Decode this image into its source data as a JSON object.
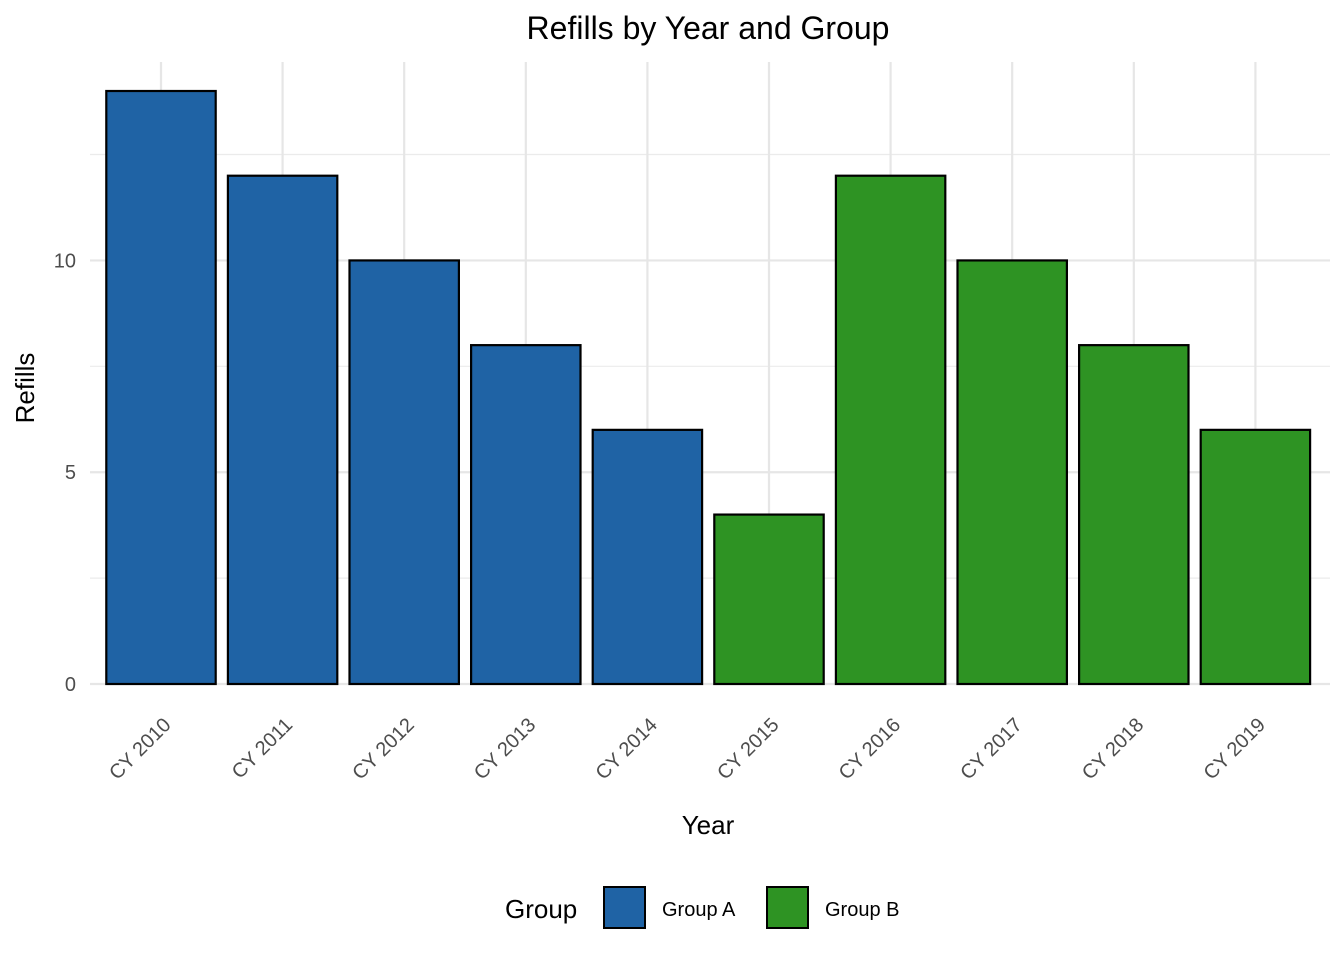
{
  "chart_data": {
    "type": "bar",
    "title": "Refills by Year and Group",
    "xlabel": "Year",
    "ylabel": "Refills",
    "categories": [
      "CY 2010",
      "CY 2011",
      "CY 2012",
      "CY 2013",
      "CY 2014",
      "CY 2015",
      "CY 2016",
      "CY 2017",
      "CY 2018",
      "CY 2019"
    ],
    "values": [
      14,
      12,
      10,
      8,
      6,
      4,
      12,
      10,
      8,
      6
    ],
    "groups": [
      "Group A",
      "Group A",
      "Group A",
      "Group A",
      "Group A",
      "Group B",
      "Group B",
      "Group B",
      "Group B",
      "Group B"
    ],
    "y_ticks": [
      0,
      5,
      10
    ],
    "ylim": [
      0,
      14.7
    ],
    "grid": true,
    "legend": {
      "title": "Group",
      "position": "bottom",
      "entries": [
        {
          "name": "Group A",
          "color": "#1f63a5"
        },
        {
          "name": "Group B",
          "color": "#2e9323"
        }
      ]
    }
  }
}
